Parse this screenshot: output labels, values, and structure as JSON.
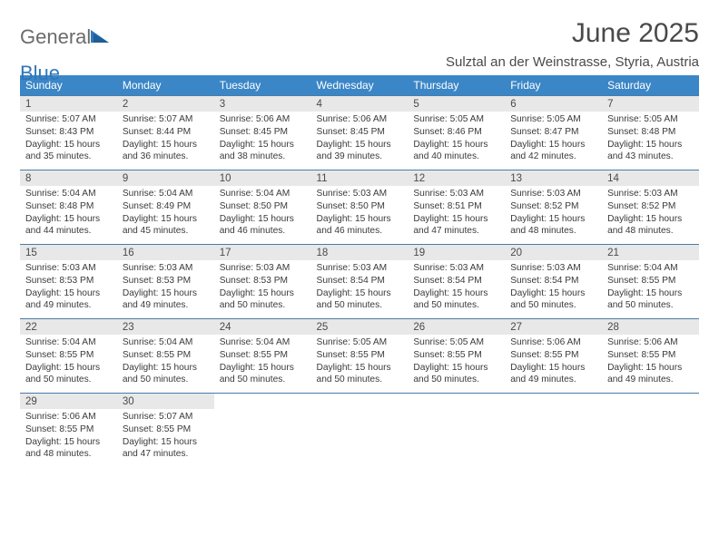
{
  "brand": {
    "part1": "General",
    "part2": "Blue"
  },
  "title": "June 2025",
  "location": "Sulztal an der Weinstrasse, Styria, Austria",
  "colors": {
    "header_bg": "#3b86c6",
    "header_text": "#ffffff",
    "daynum_bg": "#e8e8e8",
    "row_border": "#4a7ca8",
    "text_main": "#4a4a4a",
    "brand_gray": "#6b6b6b",
    "brand_blue": "#2f77b8"
  },
  "dayHeaders": [
    "Sunday",
    "Monday",
    "Tuesday",
    "Wednesday",
    "Thursday",
    "Friday",
    "Saturday"
  ],
  "weeks": [
    [
      {
        "n": "1",
        "sr": "5:07 AM",
        "ss": "8:43 PM",
        "dl": "15 hours and 35 minutes."
      },
      {
        "n": "2",
        "sr": "5:07 AM",
        "ss": "8:44 PM",
        "dl": "15 hours and 36 minutes."
      },
      {
        "n": "3",
        "sr": "5:06 AM",
        "ss": "8:45 PM",
        "dl": "15 hours and 38 minutes."
      },
      {
        "n": "4",
        "sr": "5:06 AM",
        "ss": "8:45 PM",
        "dl": "15 hours and 39 minutes."
      },
      {
        "n": "5",
        "sr": "5:05 AM",
        "ss": "8:46 PM",
        "dl": "15 hours and 40 minutes."
      },
      {
        "n": "6",
        "sr": "5:05 AM",
        "ss": "8:47 PM",
        "dl": "15 hours and 42 minutes."
      },
      {
        "n": "7",
        "sr": "5:05 AM",
        "ss": "8:48 PM",
        "dl": "15 hours and 43 minutes."
      }
    ],
    [
      {
        "n": "8",
        "sr": "5:04 AM",
        "ss": "8:48 PM",
        "dl": "15 hours and 44 minutes."
      },
      {
        "n": "9",
        "sr": "5:04 AM",
        "ss": "8:49 PM",
        "dl": "15 hours and 45 minutes."
      },
      {
        "n": "10",
        "sr": "5:04 AM",
        "ss": "8:50 PM",
        "dl": "15 hours and 46 minutes."
      },
      {
        "n": "11",
        "sr": "5:03 AM",
        "ss": "8:50 PM",
        "dl": "15 hours and 46 minutes."
      },
      {
        "n": "12",
        "sr": "5:03 AM",
        "ss": "8:51 PM",
        "dl": "15 hours and 47 minutes."
      },
      {
        "n": "13",
        "sr": "5:03 AM",
        "ss": "8:52 PM",
        "dl": "15 hours and 48 minutes."
      },
      {
        "n": "14",
        "sr": "5:03 AM",
        "ss": "8:52 PM",
        "dl": "15 hours and 48 minutes."
      }
    ],
    [
      {
        "n": "15",
        "sr": "5:03 AM",
        "ss": "8:53 PM",
        "dl": "15 hours and 49 minutes."
      },
      {
        "n": "16",
        "sr": "5:03 AM",
        "ss": "8:53 PM",
        "dl": "15 hours and 49 minutes."
      },
      {
        "n": "17",
        "sr": "5:03 AM",
        "ss": "8:53 PM",
        "dl": "15 hours and 50 minutes."
      },
      {
        "n": "18",
        "sr": "5:03 AM",
        "ss": "8:54 PM",
        "dl": "15 hours and 50 minutes."
      },
      {
        "n": "19",
        "sr": "5:03 AM",
        "ss": "8:54 PM",
        "dl": "15 hours and 50 minutes."
      },
      {
        "n": "20",
        "sr": "5:03 AM",
        "ss": "8:54 PM",
        "dl": "15 hours and 50 minutes."
      },
      {
        "n": "21",
        "sr": "5:04 AM",
        "ss": "8:55 PM",
        "dl": "15 hours and 50 minutes."
      }
    ],
    [
      {
        "n": "22",
        "sr": "5:04 AM",
        "ss": "8:55 PM",
        "dl": "15 hours and 50 minutes."
      },
      {
        "n": "23",
        "sr": "5:04 AM",
        "ss": "8:55 PM",
        "dl": "15 hours and 50 minutes."
      },
      {
        "n": "24",
        "sr": "5:04 AM",
        "ss": "8:55 PM",
        "dl": "15 hours and 50 minutes."
      },
      {
        "n": "25",
        "sr": "5:05 AM",
        "ss": "8:55 PM",
        "dl": "15 hours and 50 minutes."
      },
      {
        "n": "26",
        "sr": "5:05 AM",
        "ss": "8:55 PM",
        "dl": "15 hours and 50 minutes."
      },
      {
        "n": "27",
        "sr": "5:06 AM",
        "ss": "8:55 PM",
        "dl": "15 hours and 49 minutes."
      },
      {
        "n": "28",
        "sr": "5:06 AM",
        "ss": "8:55 PM",
        "dl": "15 hours and 49 minutes."
      }
    ],
    [
      {
        "n": "29",
        "sr": "5:06 AM",
        "ss": "8:55 PM",
        "dl": "15 hours and 48 minutes."
      },
      {
        "n": "30",
        "sr": "5:07 AM",
        "ss": "8:55 PM",
        "dl": "15 hours and 47 minutes."
      },
      null,
      null,
      null,
      null,
      null
    ]
  ],
  "labels": {
    "sunrise": "Sunrise: ",
    "sunset": "Sunset: ",
    "daylight": "Daylight: "
  }
}
